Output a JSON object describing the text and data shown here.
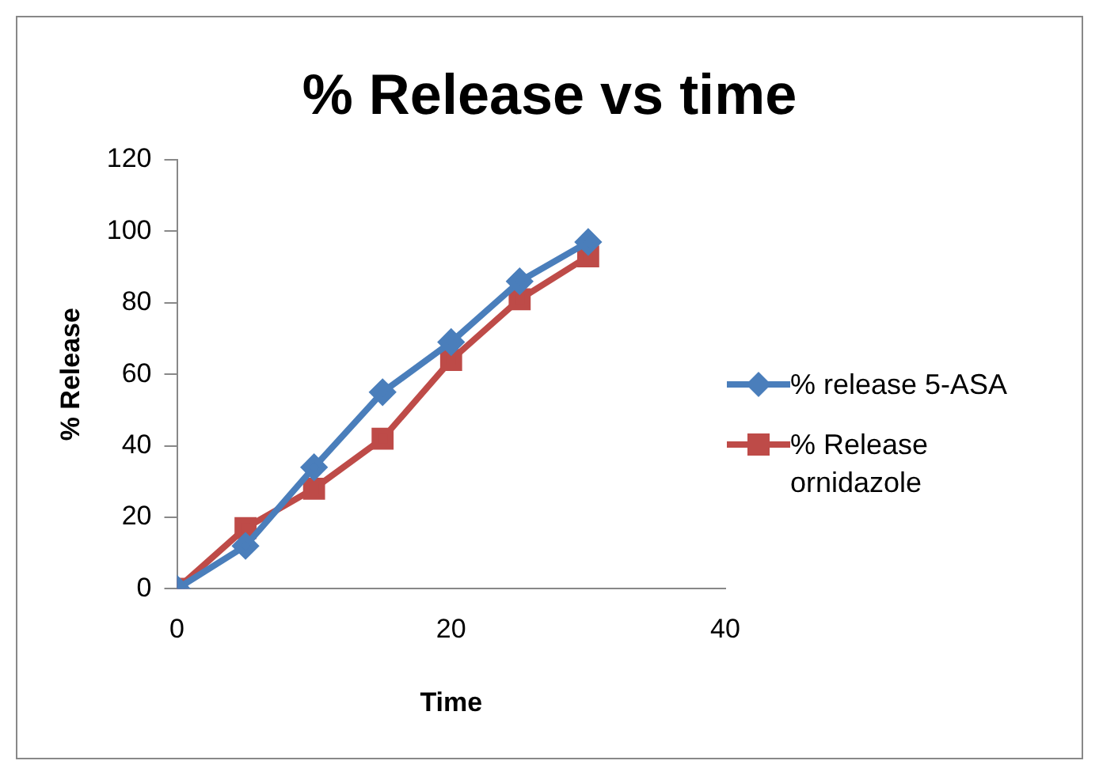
{
  "chart_data": {
    "type": "line",
    "title": "% Release vs time",
    "xlabel": "Time",
    "ylabel": "% Release",
    "x": [
      0,
      5,
      10,
      15,
      20,
      25,
      30
    ],
    "series": [
      {
        "name": "% release 5-ASA",
        "color": "#4a7ebb",
        "marker": "diamond",
        "values": [
          0,
          12,
          34,
          55,
          69,
          86,
          97
        ]
      },
      {
        "name": "% Release ornidazole",
        "color": "#be4b48",
        "marker": "square",
        "values": [
          0,
          17,
          28,
          42,
          64,
          81,
          93
        ]
      }
    ],
    "xlim": [
      0,
      40
    ],
    "xticks": [
      0,
      20,
      40
    ],
    "ylim": [
      0,
      120
    ],
    "yticks": [
      0,
      20,
      40,
      60,
      80,
      100,
      120
    ],
    "grid": false,
    "legend": "right"
  }
}
